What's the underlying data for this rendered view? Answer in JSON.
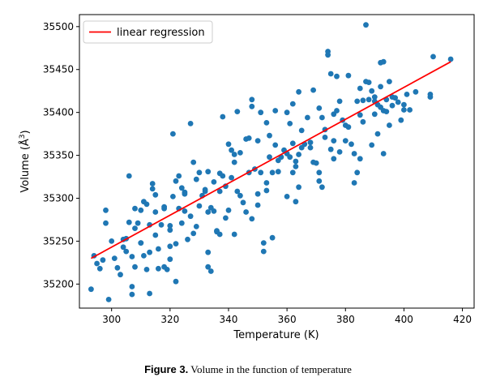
{
  "chart_data": {
    "type": "scatter",
    "title": "",
    "xlabel": "Temperature (K)",
    "ylabel": "Volume (Å³)",
    "xlim": [
      289,
      424
    ],
    "ylim": [
      35172,
      35514
    ],
    "x_ticks": [
      300,
      320,
      340,
      360,
      380,
      400,
      420
    ],
    "y_ticks": [
      35200,
      35250,
      35300,
      35350,
      35400,
      35450,
      35500
    ],
    "x_tick_labels": [
      "300",
      "320",
      "340",
      "360",
      "380",
      "400",
      "420"
    ],
    "y_tick_labels": [
      "35200",
      "35250",
      "35300",
      "35350",
      "35400",
      "35450",
      "35500"
    ],
    "grid": false,
    "legend_position": "upper-left",
    "legend_entries": [
      "linear regression"
    ],
    "colors": {
      "points": "#1f77b4",
      "regression": "#ff0000"
    },
    "series": [
      {
        "kind": "scatter",
        "points": [
          [
            293,
            35194
          ],
          [
            294,
            35233
          ],
          [
            295,
            35224
          ],
          [
            296,
            35218
          ],
          [
            297,
            35228
          ],
          [
            298,
            35286
          ],
          [
            298,
            35271
          ],
          [
            299,
            35182
          ],
          [
            300,
            35250
          ],
          [
            301,
            35230
          ],
          [
            302,
            35219
          ],
          [
            303,
            35211
          ],
          [
            304,
            35243
          ],
          [
            304,
            35252
          ],
          [
            305,
            35238
          ],
          [
            305,
            35253
          ],
          [
            306,
            35326
          ],
          [
            306,
            35272
          ],
          [
            307,
            35232
          ],
          [
            307,
            35197
          ],
          [
            307,
            35188
          ],
          [
            308,
            35265
          ],
          [
            308,
            35288
          ],
          [
            308,
            35220
          ],
          [
            309,
            35271
          ],
          [
            310,
            35248
          ],
          [
            310,
            35286
          ],
          [
            310,
            35248
          ],
          [
            311,
            35296
          ],
          [
            311,
            35233
          ],
          [
            312,
            35217
          ],
          [
            312,
            35293
          ],
          [
            313,
            35269
          ],
          [
            313,
            35189
          ],
          [
            313,
            35237
          ],
          [
            314,
            35317
          ],
          [
            314,
            35311
          ],
          [
            315,
            35304
          ],
          [
            315,
            35284
          ],
          [
            315,
            35257
          ],
          [
            316,
            35241
          ],
          [
            316,
            35218
          ],
          [
            317,
            35269
          ],
          [
            318,
            35220
          ],
          [
            318,
            35290
          ],
          [
            318,
            35288
          ],
          [
            319,
            35217
          ],
          [
            320,
            35263
          ],
          [
            320,
            35268
          ],
          [
            320,
            35244
          ],
          [
            320,
            35229
          ],
          [
            321,
            35302
          ],
          [
            321,
            35375
          ],
          [
            322,
            35203
          ],
          [
            322,
            35247
          ],
          [
            322,
            35320
          ],
          [
            323,
            35326
          ],
          [
            323,
            35288
          ],
          [
            324,
            35312
          ],
          [
            324,
            35271
          ],
          [
            325,
            35307
          ],
          [
            325,
            35305
          ],
          [
            325,
            35285
          ],
          [
            326,
            35252
          ],
          [
            327,
            35279
          ],
          [
            327,
            35387
          ],
          [
            328,
            35342
          ],
          [
            328,
            35259
          ],
          [
            329,
            35267
          ],
          [
            329,
            35322
          ],
          [
            330,
            35330
          ],
          [
            330,
            35291
          ],
          [
            331,
            35303
          ],
          [
            332,
            35310
          ],
          [
            332,
            35308
          ],
          [
            333,
            35284
          ],
          [
            333,
            35331
          ],
          [
            333,
            35237
          ],
          [
            333,
            35220
          ],
          [
            334,
            35215
          ],
          [
            334,
            35289
          ],
          [
            335,
            35319
          ],
          [
            335,
            35285
          ],
          [
            336,
            35262
          ],
          [
            336,
            35261
          ],
          [
            337,
            35258
          ],
          [
            337,
            35308
          ],
          [
            337,
            35329
          ],
          [
            338,
            35395
          ],
          [
            338,
            35326
          ],
          [
            339,
            35314
          ],
          [
            339,
            35277
          ],
          [
            340,
            35363
          ],
          [
            340,
            35286
          ],
          [
            341,
            35356
          ],
          [
            341,
            35324
          ],
          [
            342,
            35258
          ],
          [
            342,
            35342
          ],
          [
            342,
            35351
          ],
          [
            343,
            35308
          ],
          [
            343,
            35401
          ],
          [
            344,
            35303
          ],
          [
            344,
            35353
          ],
          [
            345,
            35295
          ],
          [
            346,
            35369
          ],
          [
            346,
            35284
          ],
          [
            347,
            35370
          ],
          [
            347,
            35330
          ],
          [
            348,
            35407
          ],
          [
            348,
            35276
          ],
          [
            348,
            35415
          ],
          [
            349,
            35334
          ],
          [
            350,
            35367
          ],
          [
            350,
            35292
          ],
          [
            350,
            35305
          ],
          [
            351,
            35400
          ],
          [
            351,
            35330
          ],
          [
            352,
            35248
          ],
          [
            352,
            35238
          ],
          [
            353,
            35309
          ],
          [
            353,
            35318
          ],
          [
            353,
            35388
          ],
          [
            354,
            35348
          ],
          [
            354,
            35373
          ],
          [
            355,
            35254
          ],
          [
            355,
            35330
          ],
          [
            356,
            35362
          ],
          [
            356,
            35402
          ],
          [
            357,
            35344
          ],
          [
            357,
            35331
          ],
          [
            358,
            35348
          ],
          [
            359,
            35356
          ],
          [
            360,
            35352
          ],
          [
            360,
            35400
          ],
          [
            360,
            35302
          ],
          [
            361,
            35387
          ],
          [
            361,
            35348
          ],
          [
            362,
            35410
          ],
          [
            362,
            35364
          ],
          [
            362,
            35330
          ],
          [
            363,
            35296
          ],
          [
            363,
            35343
          ],
          [
            363,
            35337
          ],
          [
            364,
            35424
          ],
          [
            364,
            35313
          ],
          [
            364,
            35351
          ],
          [
            365,
            35359
          ],
          [
            365,
            35379
          ],
          [
            366,
            35363
          ],
          [
            367,
            35394
          ],
          [
            368,
            35365
          ],
          [
            368,
            35359
          ],
          [
            369,
            35342
          ],
          [
            369,
            35426
          ],
          [
            370,
            35341
          ],
          [
            371,
            35405
          ],
          [
            371,
            35330
          ],
          [
            371,
            35320
          ],
          [
            372,
            35313
          ],
          [
            372,
            35394
          ],
          [
            373,
            35380
          ],
          [
            373,
            35371
          ],
          [
            374,
            35467
          ],
          [
            374,
            35471
          ],
          [
            375,
            35445
          ],
          [
            375,
            35357
          ],
          [
            376,
            35346
          ],
          [
            376,
            35398
          ],
          [
            376,
            35367
          ],
          [
            377,
            35442
          ],
          [
            377,
            35402
          ],
          [
            378,
            35413
          ],
          [
            378,
            35354
          ],
          [
            379,
            35391
          ],
          [
            380,
            35385
          ],
          [
            380,
            35367
          ],
          [
            381,
            35443
          ],
          [
            381,
            35383
          ],
          [
            382,
            35363
          ],
          [
            383,
            35318
          ],
          [
            383,
            35352
          ],
          [
            384,
            35330
          ],
          [
            384,
            35413
          ],
          [
            385,
            35428
          ],
          [
            385,
            35397
          ],
          [
            385,
            35346
          ],
          [
            386,
            35414
          ],
          [
            386,
            35389
          ],
          [
            387,
            35502
          ],
          [
            387,
            35436
          ],
          [
            388,
            35435
          ],
          [
            388,
            35415
          ],
          [
            389,
            35362
          ],
          [
            389,
            35425
          ],
          [
            390,
            35418
          ],
          [
            390,
            35413
          ],
          [
            390,
            35398
          ],
          [
            391,
            35375
          ],
          [
            391,
            35409
          ],
          [
            392,
            35406
          ],
          [
            392,
            35458
          ],
          [
            392,
            35430
          ],
          [
            393,
            35459
          ],
          [
            393,
            35352
          ],
          [
            393,
            35402
          ],
          [
            394,
            35415
          ],
          [
            394,
            35401
          ],
          [
            395,
            35385
          ],
          [
            395,
            35436
          ],
          [
            396,
            35408
          ],
          [
            396,
            35418
          ],
          [
            397,
            35417
          ],
          [
            398,
            35412
          ],
          [
            399,
            35391
          ],
          [
            400,
            35403
          ],
          [
            400,
            35409
          ],
          [
            401,
            35421
          ],
          [
            402,
            35403
          ],
          [
            404,
            35424
          ],
          [
            409,
            35418
          ],
          [
            409,
            35421
          ],
          [
            410,
            35465
          ],
          [
            416,
            35462
          ]
        ]
      },
      {
        "kind": "line",
        "name": "linear regression",
        "points": [
          [
            293,
            35230
          ],
          [
            416,
            35459
          ]
        ]
      }
    ]
  },
  "caption": {
    "label": "Figure 3.",
    "text": "Volume in the function of temperature"
  }
}
